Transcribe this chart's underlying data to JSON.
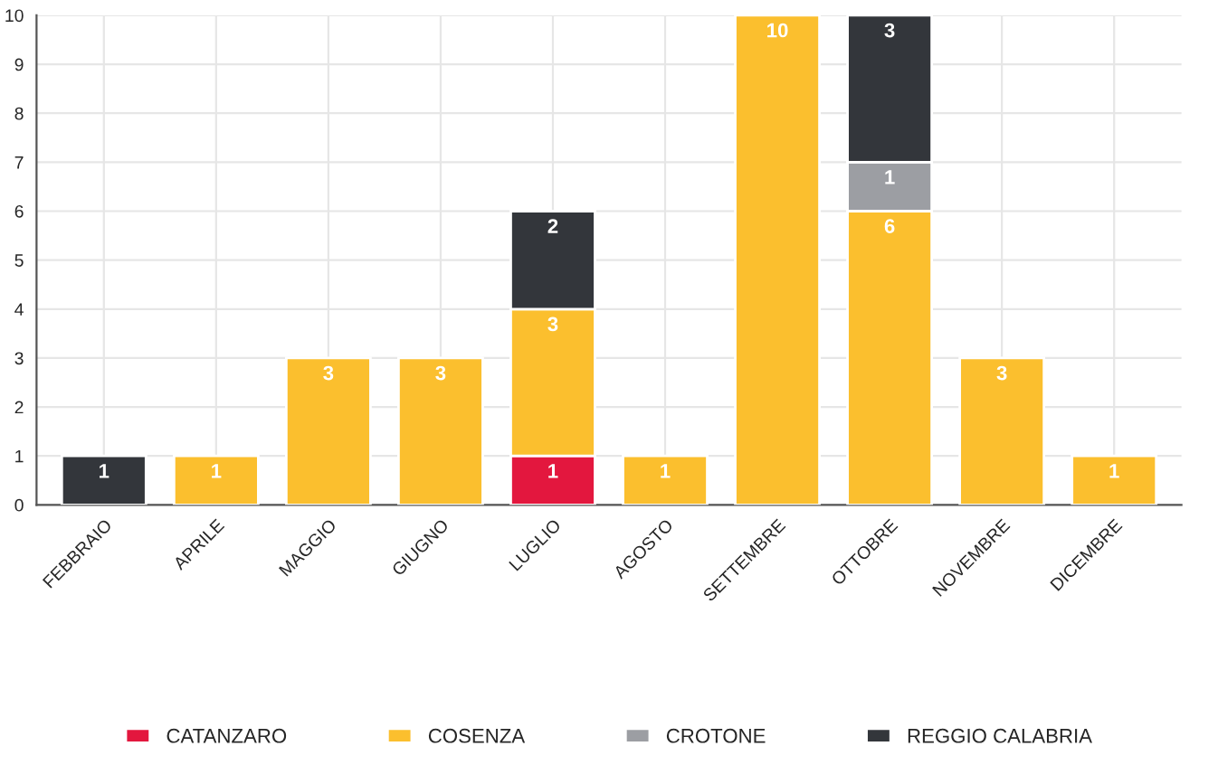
{
  "chart_data": {
    "type": "bar",
    "stacked": true,
    "data_labels": true,
    "grid": true,
    "legend": "bottom",
    "categories": [
      "FEBBRAIO",
      "APRILE",
      "MAGGIO",
      "GIUGNO",
      "LUGLIO",
      "AGOSTO",
      "SETTEMBRE",
      "OTTOBRE",
      "NOVEMBRE",
      "DICEMBRE"
    ],
    "ylim": [
      0,
      10
    ],
    "yticks": [
      0,
      1,
      2,
      3,
      4,
      5,
      6,
      7,
      8,
      9,
      10
    ],
    "series": [
      {
        "name": "CATANZARO",
        "color": "#e3173e",
        "values": [
          null,
          null,
          null,
          null,
          1,
          null,
          null,
          null,
          null,
          null
        ]
      },
      {
        "name": "COSENZA",
        "color": "#fbbf2e",
        "values": [
          null,
          1,
          3,
          3,
          3,
          1,
          10,
          6,
          3,
          1
        ]
      },
      {
        "name": "CROTONE",
        "color": "#9c9ea3",
        "values": [
          null,
          null,
          null,
          null,
          null,
          null,
          null,
          1,
          null,
          null
        ]
      },
      {
        "name": "REGGIO CALABRIA",
        "color": "#33363b",
        "values": [
          1,
          null,
          null,
          null,
          2,
          null,
          null,
          3,
          null,
          null
        ]
      }
    ]
  }
}
